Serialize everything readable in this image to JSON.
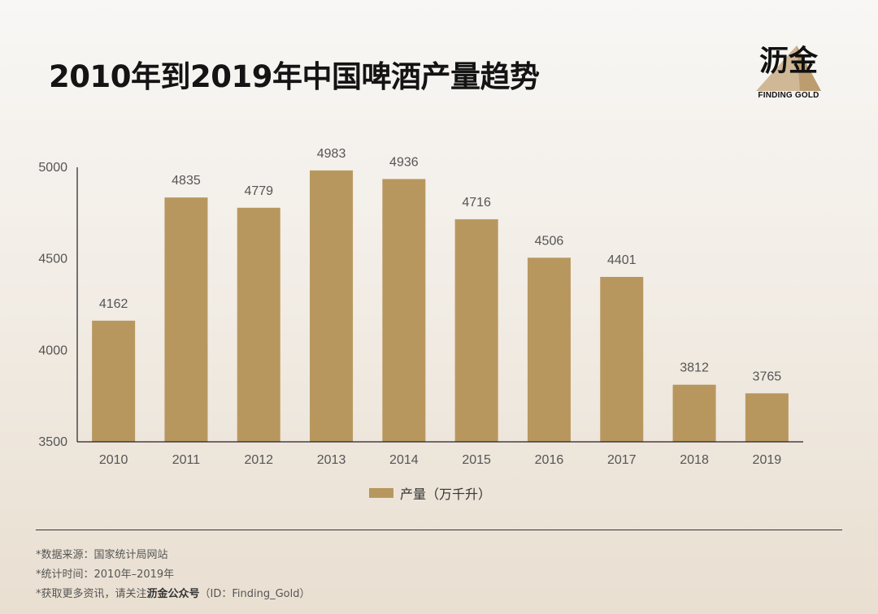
{
  "title": "2010年到2019年中国啤酒产量趋势",
  "logo": {
    "name": "沥金",
    "sub": "FINDING GOLD"
  },
  "colors": {
    "bar": "#b8975f",
    "logo_gold": "#c9ad86",
    "axis": "#222222",
    "label": "#555555"
  },
  "chart_data": {
    "type": "bar",
    "categories": [
      "2010",
      "2011",
      "2012",
      "2013",
      "2014",
      "2015",
      "2016",
      "2017",
      "2018",
      "2019"
    ],
    "series": [
      {
        "name": "产量（万千升）",
        "values": [
          4162,
          4835,
          4779,
          4983,
          4936,
          4716,
          4506,
          4401,
          3812,
          3765
        ]
      }
    ],
    "title": "2010年到2019年中国啤酒产量趋势",
    "ylim": [
      3500,
      5000
    ],
    "yticks": [
      3500,
      4000,
      4500,
      5000
    ],
    "grid": false,
    "legend": "bottom-center",
    "data_labels": true
  },
  "notes": {
    "source": "*数据来源：国家统计局网站",
    "period": "*统计时间：2010年–2019年",
    "follow_prefix": "*获取更多资讯，请关注",
    "follow_brand": "沥金公众号",
    "follow_suffix": "（ID：Finding_Gold）"
  }
}
